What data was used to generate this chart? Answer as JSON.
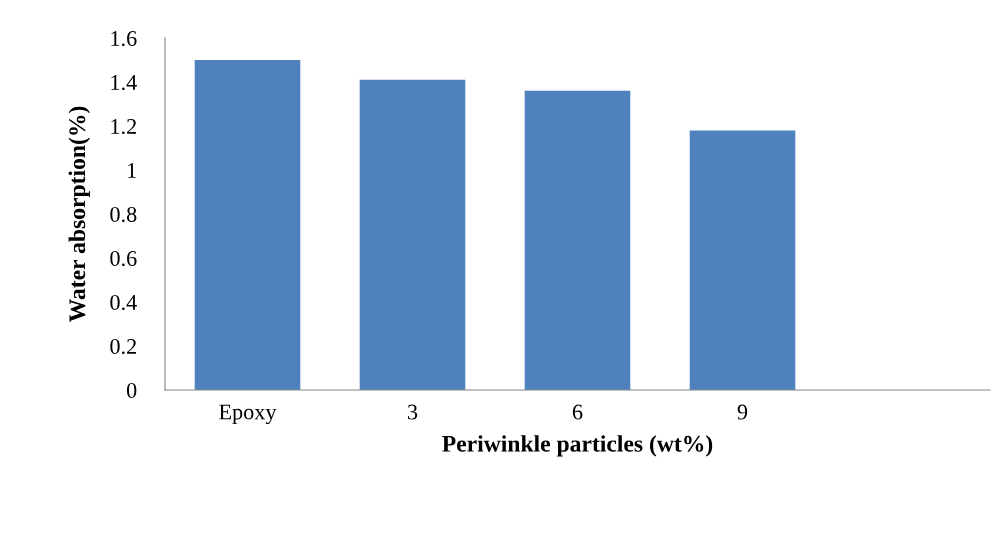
{
  "chart_data": {
    "type": "bar",
    "xlabel": "Periwinkle particles (wt%)",
    "ylabel": "Water absorption(%)",
    "categories": [
      "Epoxy",
      "3",
      "6",
      "9",
      null
    ],
    "values": [
      1.5,
      1.41,
      1.36,
      1.18,
      null
    ],
    "color": "#4f81bd",
    "ylim": [
      0,
      1.6
    ],
    "yticks": [
      0,
      {
        "value": 0.2,
        "label": "0.2"
      },
      {
        "value": 0.4,
        "label": "0.4"
      },
      {
        "value": 0.6,
        "label": "0.6"
      },
      {
        "value": 0.8,
        "label": "0.8"
      },
      1,
      {
        "value": 1.2,
        "label": "1.2"
      },
      {
        "value": 1.4,
        "label": "1.4"
      },
      {
        "value": 1.6,
        "label": "1.6"
      }
    ],
    "grid": false
  }
}
